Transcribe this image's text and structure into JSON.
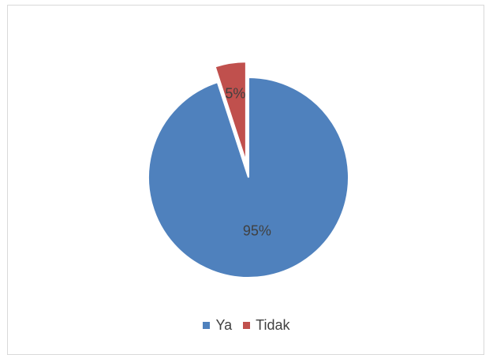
{
  "chart_data": {
    "type": "pie",
    "title": "",
    "categories": [
      "Ya",
      "Tidak"
    ],
    "values": [
      95,
      5
    ],
    "labels": [
      "95%",
      "5%"
    ],
    "colors": [
      "#4F81BD",
      "#C0504D"
    ],
    "exploded": [
      "Tidak"
    ],
    "legend_position": "bottom"
  }
}
